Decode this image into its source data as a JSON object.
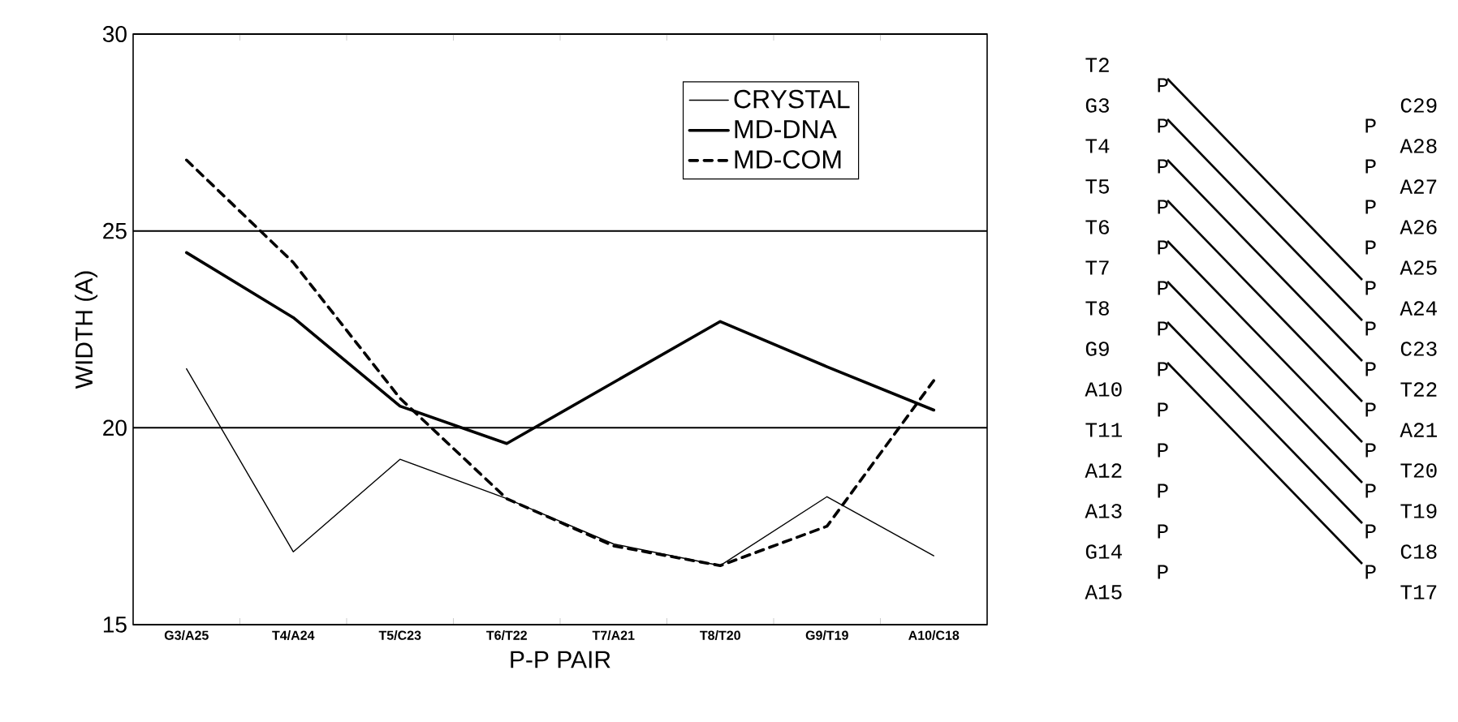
{
  "chart_data": [
    {
      "type": "line",
      "xlabel": "P-P PAIR",
      "ylabel": "WIDTH (A)",
      "categories": [
        "G3/A25",
        "T4/A24",
        "T5/C23",
        "T6/T22",
        "T7/A21",
        "T8/T20",
        "G9/T19",
        "A10/C18"
      ],
      "series": [
        {
          "name": "CRYSTAL",
          "color": "#000000",
          "line_style": "solid",
          "values": [
            21.5,
            16.85,
            19.2,
            18.2,
            17.05,
            16.5,
            18.25,
            16.75
          ]
        },
        {
          "name": "MD-DNA",
          "color": "#000000",
          "line_style": "solid",
          "values": [
            24.45,
            22.8,
            20.55,
            19.6,
            21.15,
            22.7,
            21.55,
            20.45
          ]
        },
        {
          "name": "MD-COM",
          "color": "#000000",
          "line_style": "dashed",
          "values": [
            26.8,
            24.2,
            20.75,
            18.2,
            17.0,
            16.5,
            17.5,
            21.2
          ]
        }
      ],
      "ylim": [
        15,
        30
      ],
      "yticks": [
        15,
        20,
        25,
        30
      ],
      "grid": "y",
      "legend": "top right",
      "marker": "none"
    },
    {
      "type": "other",
      "annotations": [
        "T2",
        "G3",
        "T4",
        "T5",
        "T6",
        "T7",
        "T8",
        "G9",
        "A10",
        "T11",
        "A12",
        "A13",
        "G14",
        "A15",
        "P",
        "P",
        "P",
        "P",
        "P",
        "P",
        "P",
        "P",
        "P",
        "P",
        "P",
        "P",
        "P",
        "P",
        "P",
        "P",
        "P",
        "P",
        "P",
        "P",
        "P",
        "P",
        "P",
        "P",
        "P",
        "C29",
        "A28",
        "A27",
        "A26",
        "A25",
        "A24",
        "C23",
        "T22",
        "A21",
        "T20",
        "T19",
        "C18",
        "T17"
      ]
    }
  ]
}
